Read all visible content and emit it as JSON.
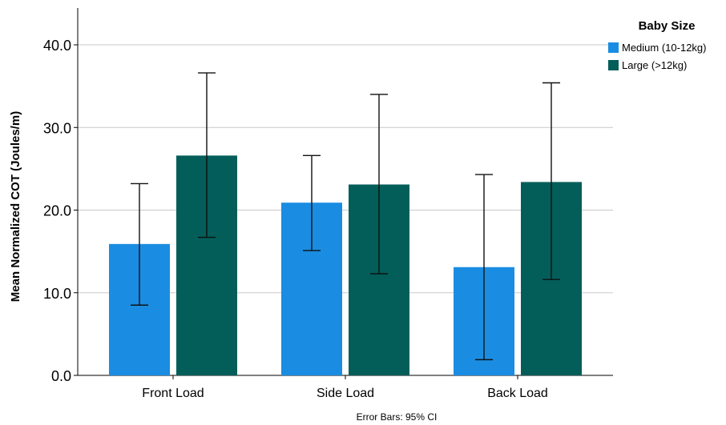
{
  "chart_data": {
    "type": "bar",
    "categories": [
      "Front Load",
      "Side Load",
      "Back Load"
    ],
    "ylabel": "Mean Normalized COT (Joules/m)",
    "ylim": [
      0,
      40
    ],
    "yticks": [
      "0.0",
      "10.0",
      "20.0",
      "30.0",
      "40.0"
    ],
    "grid": true,
    "legend": {
      "title": "Baby Size",
      "position": "top-right"
    },
    "series": [
      {
        "name": "Medium (10-12kg)",
        "color": "#1a8de2",
        "values": [
          15.9,
          20.9,
          13.1
        ],
        "ci_low": [
          8.5,
          15.1,
          1.9
        ],
        "ci_high": [
          23.2,
          26.6,
          24.3
        ]
      },
      {
        "name": "Large (>12kg)",
        "color": "#035e5a",
        "values": [
          26.6,
          23.1,
          23.4
        ],
        "ci_low": [
          16.7,
          12.3,
          11.6
        ],
        "ci_high": [
          36.6,
          34.0,
          35.4
        ]
      }
    ],
    "footnote": "Error Bars: 95% CI"
  }
}
